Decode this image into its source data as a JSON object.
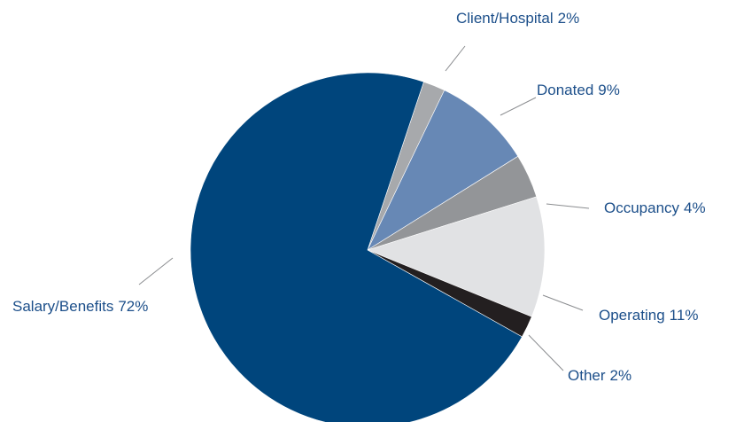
{
  "chart_data": {
    "type": "pie",
    "categories": [
      "Client/Hospital",
      "Donated",
      "Occupancy",
      "Operating",
      "Other",
      "Salary/Benefits"
    ],
    "values": [
      2,
      9,
      4,
      11,
      2,
      72
    ],
    "value_labels": [
      "2%",
      "9%",
      "4%",
      "11%",
      "2%",
      "72%"
    ],
    "colors": [
      "#a7a9ac",
      "#6788b5",
      "#939598",
      "#e1e2e4",
      "#231f20",
      "#00457c"
    ]
  }
}
